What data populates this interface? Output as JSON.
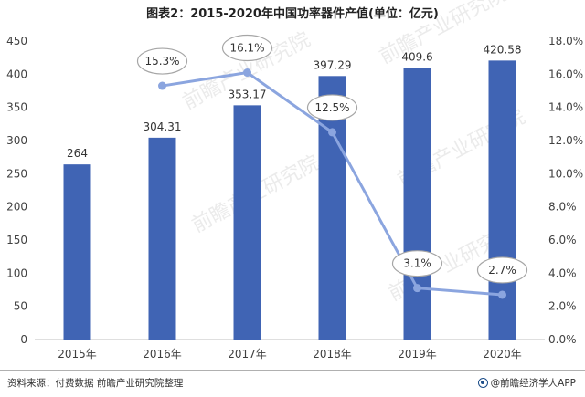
{
  "title": "图表2：2015-2020年中国功率器件产值(单位：亿元)",
  "chart_data": {
    "type": "bar",
    "categories": [
      "2015年",
      "2016年",
      "2017年",
      "2018年",
      "2019年",
      "2020年"
    ],
    "series": [
      {
        "values": [
          264,
          304.31,
          353.17,
          397.29,
          409.6,
          420.58
        ],
        "data_labels": [
          "264",
          "304.31",
          "353.17",
          "397.29",
          "409.6",
          "420.58"
        ],
        "type": "bar",
        "axis": "left",
        "color": "#4064b4"
      },
      {
        "values": [
          null,
          15.3,
          16.1,
          12.5,
          3.1,
          2.7
        ],
        "data_labels": [
          "",
          "15.3%",
          "16.1%",
          "12.5%",
          "3.1%",
          "2.7%"
        ],
        "type": "line",
        "axis": "right",
        "color": "#8ba5df"
      }
    ],
    "left_axis": {
      "ylim": [
        0,
        450
      ],
      "ticks": [
        0,
        50,
        100,
        150,
        200,
        250,
        300,
        350,
        400,
        450
      ]
    },
    "right_axis": {
      "ylim": [
        0,
        18
      ],
      "ticks": [
        "0.0%",
        "2.0%",
        "4.0%",
        "6.0%",
        "8.0%",
        "10.0%",
        "12.0%",
        "14.0%",
        "16.0%",
        "18.0%"
      ]
    },
    "grid": false,
    "legend": "none"
  },
  "footer": {
    "source": "资料来源：付费数据 前瞻产业研究院整理",
    "brand": "@前瞻经济学人APP"
  },
  "watermark": "前瞻产业研究院"
}
